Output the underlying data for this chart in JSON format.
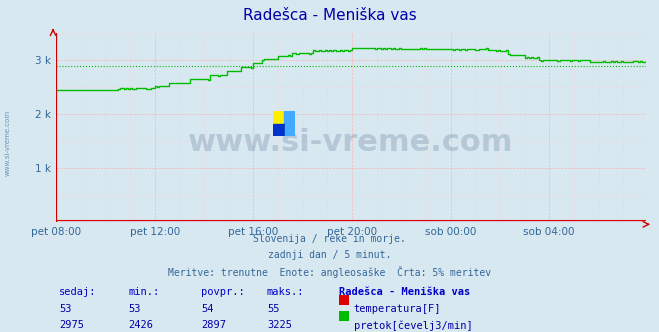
{
  "title": "Radešca - Meniška vas",
  "bg_color": "#d8e8f0",
  "plot_bg_color": "#d8e8f0",
  "grid_color_major": "#ffaaaa",
  "grid_color_minor": "#ffcccc",
  "text_color": "#0000aa",
  "xlabel_color": "#336699",
  "subtitle_lines": [
    "Slovenija / reke in morje.",
    "zadnji dan / 5 minut.",
    "Meritve: trenutne  Enote: angleosaške  Črta: 5% meritev"
  ],
  "x_tick_labels": [
    "pet 08:00",
    "pet 12:00",
    "pet 16:00",
    "pet 20:00",
    "sob 00:00",
    "sob 04:00"
  ],
  "x_tick_positions": [
    0,
    48,
    96,
    144,
    192,
    240
  ],
  "total_points": 288,
  "ylim": [
    0,
    3500
  ],
  "yticks": [
    1000,
    2000,
    3000
  ],
  "ytick_labels": [
    "1 k",
    "2 k",
    "3 k"
  ],
  "temp_color": "#dd0000",
  "flow_color": "#00bb00",
  "flow_avg_color": "#00bb00",
  "watermark_text": "www.si-vreme.com",
  "watermark_color": "#1a3a6a",
  "watermark_alpha": 0.18,
  "temp_sedaj": 53,
  "temp_min": 53,
  "temp_povpr": 54,
  "temp_maks": 55,
  "flow_sedaj": 2975,
  "flow_min": 2426,
  "flow_povpr": 2897,
  "flow_maks": 3225,
  "table_header": [
    "sedaj:",
    "min.:",
    "povpr.:",
    "maks.:",
    "Radešca - Meniška vas"
  ],
  "table_label1": "temperatura[F]",
  "table_label2": "pretok[čevelj3/min]"
}
